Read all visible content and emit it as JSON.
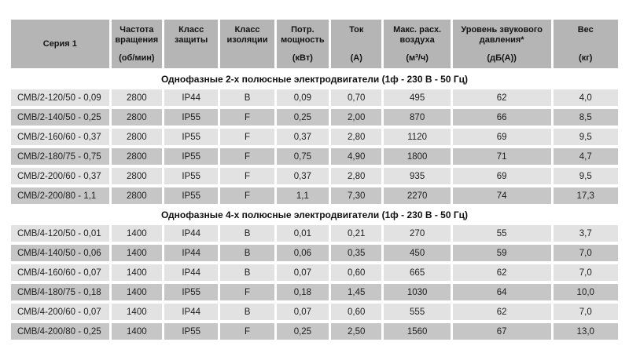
{
  "table": {
    "colors": {
      "background": "#ffffff",
      "header_bg": "#b5b5b5",
      "row_light": "#e2e2e2",
      "row_dark": "#c6c6c6",
      "text": "#1c1c1c"
    },
    "header": {
      "cols": [
        {
          "title": "Серия 1",
          "unit": ""
        },
        {
          "title": "Частота вращения",
          "unit": "(об/мин)"
        },
        {
          "title": "Класс защиты",
          "unit": ""
        },
        {
          "title": "Класс изоляции",
          "unit": ""
        },
        {
          "title": "Потр. мощность",
          "unit": "(кВт)"
        },
        {
          "title": "Ток",
          "unit": "(А)"
        },
        {
          "title": "Макс. расх. воздуха",
          "unit": "(м³/ч)"
        },
        {
          "title": "Уровень звукового давления*",
          "unit": "(дБ(А))"
        },
        {
          "title": "Вес",
          "unit": "(кг)"
        }
      ]
    },
    "sections": [
      {
        "title": "Однофазные 2-х полюсные электродвигатели (1ф - 230 В - 50 Гц)",
        "rows": [
          [
            "СМВ/2-120/50 - 0,09",
            "2800",
            "IP44",
            "B",
            "0,09",
            "0,70",
            "495",
            "62",
            "4,0"
          ],
          [
            "СМВ/2-140/50 - 0,25",
            "2800",
            "IP55",
            "F",
            "0,25",
            "2,00",
            "870",
            "66",
            "8,5"
          ],
          [
            "СМВ/2-160/60 - 0,37",
            "2800",
            "IP55",
            "F",
            "0,37",
            "2,80",
            "1120",
            "69",
            "9,5"
          ],
          [
            "СМВ/2-180/75 - 0,75",
            "2800",
            "IP55",
            "F",
            "0,75",
            "4,90",
            "1800",
            "71",
            "4,7"
          ],
          [
            "СМВ/2-200/60 - 0,37",
            "2800",
            "IP55",
            "F",
            "0,37",
            "2,80",
            "935",
            "69",
            "9,5"
          ],
          [
            "СМВ/2-200/80 - 1,1",
            "2800",
            "IP55",
            "F",
            "1,1",
            "7,30",
            "2270",
            "74",
            "17,3"
          ]
        ]
      },
      {
        "title": "Однофазные 4-х полюсные электродвигатели (1ф - 230 В - 50 Гц)",
        "rows": [
          [
            "СМВ/4-120/50 - 0,01",
            "1400",
            "IP44",
            "B",
            "0,01",
            "0,21",
            "270",
            "55",
            "3,7"
          ],
          [
            "СМВ/4-140/50 - 0,06",
            "1400",
            "IP44",
            "B",
            "0,06",
            "0,35",
            "450",
            "59",
            "7,0"
          ],
          [
            "СМВ/4-160/60 - 0,07",
            "1400",
            "IP44",
            "B",
            "0,07",
            "0,60",
            "665",
            "62",
            "7,0"
          ],
          [
            "СМВ/4-180/75 - 0,18",
            "1400",
            "IP55",
            "F",
            "0,18",
            "1,45",
            "1030",
            "64",
            "10,0"
          ],
          [
            "СМВ/4-200/60 - 0,07",
            "1400",
            "IP44",
            "B",
            "0,07",
            "0,60",
            "555",
            "62",
            "7,0"
          ],
          [
            "СМВ/4-200/80 - 0,25",
            "1400",
            "IP55",
            "F",
            "0,25",
            "2,50",
            "1560",
            "67",
            "13,0"
          ]
        ]
      }
    ]
  }
}
